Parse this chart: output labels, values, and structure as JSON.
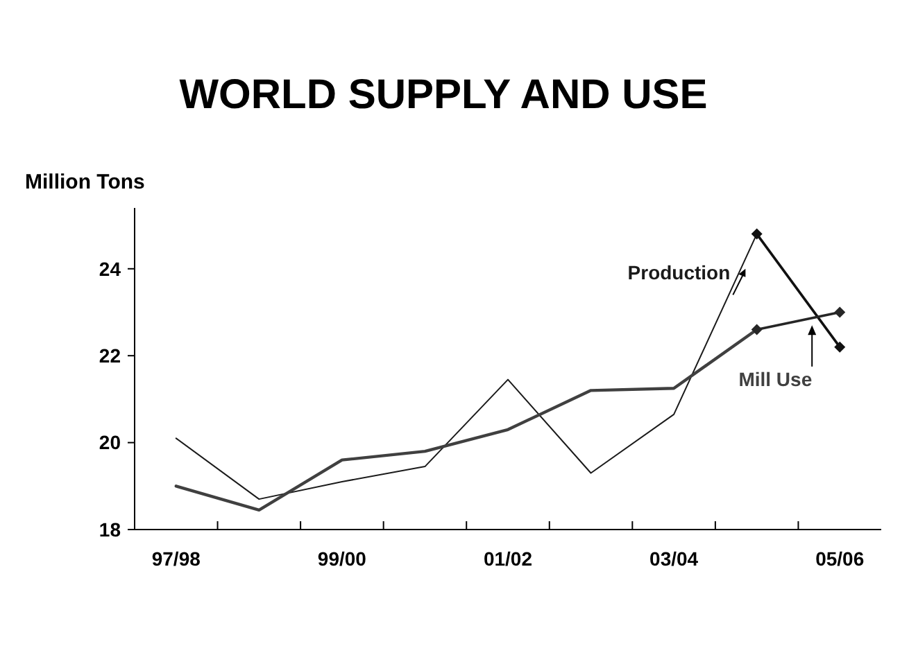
{
  "chart_data": {
    "type": "line",
    "title": "WORLD SUPPLY AND USE",
    "ylabel": "Million Tons",
    "categories": [
      "97/98",
      null,
      "99/00",
      null,
      "01/02",
      null,
      "03/04",
      null,
      "05/06"
    ],
    "series": [
      {
        "name": "Production",
        "color": "#1a1a1a",
        "values": [
          20.1,
          18.7,
          19.1,
          19.45,
          21.45,
          19.3,
          20.65,
          24.8,
          null
        ]
      },
      {
        "name": "Mill Use",
        "color": "#404040",
        "values": [
          19.0,
          18.45,
          19.6,
          19.8,
          20.3,
          21.2,
          21.25,
          22.6,
          null
        ]
      },
      {
        "color": "#111111",
        "marker": "diamond",
        "values": [
          null,
          null,
          null,
          null,
          null,
          null,
          null,
          24.8,
          22.2
        ]
      },
      {
        "color": "#262626",
        "marker": "diamond",
        "values": [
          null,
          null,
          null,
          null,
          null,
          null,
          null,
          22.6,
          23.0
        ]
      }
    ],
    "ylim": [
      18,
      25.4
    ],
    "yticks": [
      18,
      20,
      22,
      24
    ],
    "grid": false,
    "marker": "none",
    "line_style": "solid"
  }
}
